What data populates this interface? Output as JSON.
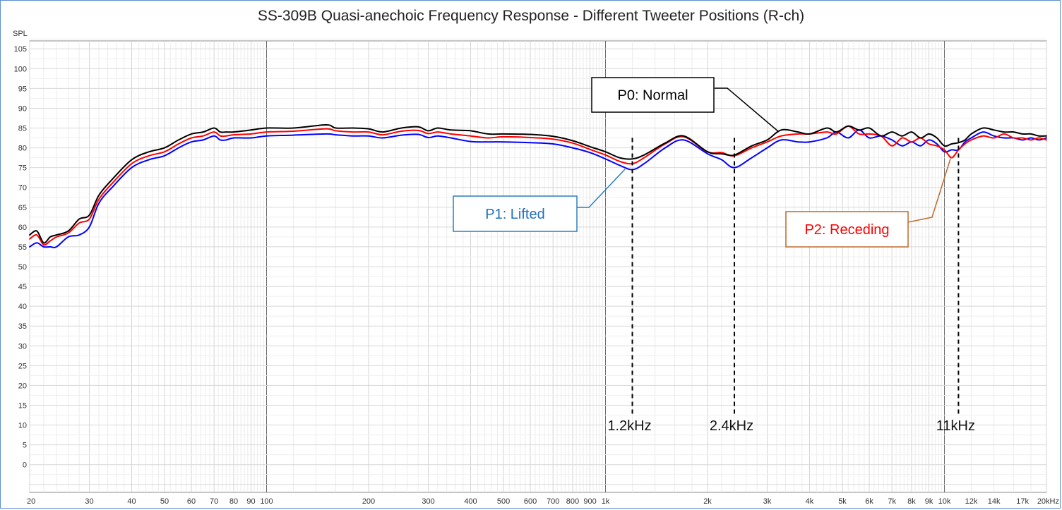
{
  "chart_data": {
    "type": "line",
    "title": "SS-309B Quasi-anechoic Frequency Response - Different Tweeter Positions (R-ch)",
    "ylabel": "SPL",
    "xscale": "log",
    "xlim": [
      20,
      20000
    ],
    "ylim": [
      -7,
      107
    ],
    "grid": true,
    "y_ticks": [
      0,
      5,
      10,
      15,
      20,
      25,
      30,
      35,
      40,
      45,
      50,
      55,
      60,
      65,
      70,
      75,
      80,
      85,
      90,
      95,
      100,
      105
    ],
    "x_ticks": [
      {
        "value": 20,
        "label": "20"
      },
      {
        "value": 30,
        "label": "30"
      },
      {
        "value": 40,
        "label": "40"
      },
      {
        "value": 50,
        "label": "50"
      },
      {
        "value": 60,
        "label": "60"
      },
      {
        "value": 70,
        "label": "70"
      },
      {
        "value": 80,
        "label": "80"
      },
      {
        "value": 90,
        "label": "90"
      },
      {
        "value": 100,
        "label": "100"
      },
      {
        "value": 200,
        "label": "200"
      },
      {
        "value": 300,
        "label": "300"
      },
      {
        "value": 400,
        "label": "400"
      },
      {
        "value": 500,
        "label": "500"
      },
      {
        "value": 600,
        "label": "600"
      },
      {
        "value": 700,
        "label": "700"
      },
      {
        "value": 800,
        "label": "800"
      },
      {
        "value": 900,
        "label": "900"
      },
      {
        "value": 1000,
        "label": "1k"
      },
      {
        "value": 2000,
        "label": "2k"
      },
      {
        "value": 3000,
        "label": "3k"
      },
      {
        "value": 4000,
        "label": "4k"
      },
      {
        "value": 5000,
        "label": "5k"
      },
      {
        "value": 6000,
        "label": "6k"
      },
      {
        "value": 7000,
        "label": "7k"
      },
      {
        "value": 8000,
        "label": "8k"
      },
      {
        "value": 9000,
        "label": "9k"
      },
      {
        "value": 10000,
        "label": "10k"
      },
      {
        "value": 12000,
        "label": "12k",
        "muted": true
      },
      {
        "value": 14000,
        "label": "14k",
        "muted": true
      },
      {
        "value": 17000,
        "label": "17k",
        "muted": true
      },
      {
        "value": 20000,
        "label": "20kHz"
      }
    ],
    "series": [
      {
        "name": "P0: Normal",
        "color": "#000000",
        "x": [
          20,
          21,
          22,
          23,
          24,
          26,
          28,
          30,
          32,
          35,
          40,
          45,
          50,
          55,
          60,
          65,
          70,
          73,
          76,
          80,
          90,
          100,
          120,
          150,
          160,
          180,
          200,
          220,
          250,
          280,
          300,
          320,
          350,
          400,
          450,
          500,
          600,
          700,
          800,
          900,
          1000,
          1100,
          1200,
          1300,
          1500,
          1700,
          2000,
          2200,
          2400,
          2700,
          3000,
          3300,
          3700,
          4000,
          4500,
          4800,
          5200,
          5600,
          6000,
          6500,
          7000,
          7500,
          8000,
          8500,
          9000,
          9500,
          10000,
          10500,
          11000,
          11500,
          12000,
          13000,
          14000,
          15000,
          16000,
          17000,
          18000,
          19000,
          20000
        ],
        "y": [
          58,
          59,
          56,
          57.5,
          58,
          59,
          62,
          63,
          68,
          72,
          77,
          79,
          80,
          82,
          83.5,
          84,
          85,
          84,
          84,
          84,
          84.5,
          85,
          85,
          85.8,
          85,
          85,
          84.8,
          84,
          85,
          85.3,
          84.3,
          85,
          84.5,
          84.3,
          83.5,
          83.5,
          83.4,
          82.9,
          81.8,
          80.3,
          79,
          77.5,
          77.2,
          78.2,
          81.2,
          83,
          79,
          78.5,
          78.2,
          80.5,
          82,
          84.5,
          84,
          83.5,
          85,
          84,
          85.5,
          84.5,
          85,
          83,
          84,
          83,
          84,
          82.5,
          83.5,
          82.5,
          80.5,
          81,
          81.3,
          82,
          83.5,
          85,
          84.5,
          84,
          84,
          83.5,
          83.5,
          83,
          83
        ]
      },
      {
        "name": "P1: Lifted",
        "color": "#0000ff",
        "x": [
          20,
          21,
          22,
          23,
          24,
          26,
          28,
          30,
          32,
          35,
          40,
          45,
          50,
          55,
          60,
          65,
          70,
          73,
          76,
          80,
          90,
          100,
          120,
          150,
          160,
          180,
          200,
          220,
          250,
          280,
          300,
          320,
          350,
          400,
          450,
          500,
          600,
          700,
          800,
          900,
          1000,
          1100,
          1200,
          1300,
          1500,
          1700,
          2000,
          2200,
          2400,
          2700,
          3000,
          3300,
          3700,
          4000,
          4500,
          4800,
          5200,
          5600,
          6000,
          6500,
          7000,
          7500,
          8000,
          8500,
          9000,
          9500,
          10000,
          10500,
          11000,
          11500,
          12000,
          13000,
          14000,
          15000,
          16000,
          17000,
          18000,
          19000,
          20000
        ],
        "y": [
          55,
          56,
          55,
          55,
          55,
          57.5,
          58,
          60,
          66,
          70,
          75,
          77,
          78,
          80,
          81.5,
          82,
          83,
          82,
          82,
          82.5,
          82.5,
          83,
          83.2,
          83.5,
          83.3,
          83,
          83,
          82.5,
          83.2,
          83.4,
          82.6,
          83,
          82.5,
          81.6,
          81.5,
          81.5,
          81.3,
          81,
          80,
          78.8,
          77.2,
          75.6,
          74.5,
          76,
          80,
          82,
          78.5,
          77,
          75,
          77.5,
          80,
          82,
          81.5,
          81.5,
          82.5,
          84,
          82.5,
          84.5,
          82.5,
          83,
          82,
          80.5,
          81.5,
          80.5,
          82,
          81,
          79,
          79.5,
          79.5,
          81.5,
          82.5,
          84,
          83,
          82.5,
          82.5,
          82,
          82.5,
          82,
          82.5
        ]
      },
      {
        "name": "P2: Receding",
        "color": "#ff0000",
        "x": [
          20,
          21,
          22,
          23,
          24,
          26,
          28,
          30,
          32,
          35,
          40,
          45,
          50,
          55,
          60,
          65,
          70,
          73,
          76,
          80,
          90,
          100,
          120,
          150,
          160,
          180,
          200,
          220,
          250,
          280,
          300,
          320,
          350,
          400,
          450,
          500,
          600,
          700,
          800,
          900,
          1000,
          1100,
          1200,
          1300,
          1500,
          1700,
          2000,
          2200,
          2400,
          2700,
          3000,
          3300,
          3700,
          4000,
          4500,
          4800,
          5200,
          5600,
          6000,
          6500,
          7000,
          7500,
          8000,
          8500,
          9000,
          9500,
          10000,
          10500,
          11000,
          11500,
          12000,
          13000,
          14000,
          15000,
          16000,
          17000,
          18000,
          19000,
          20000
        ],
        "y": [
          57,
          58,
          55.5,
          56.5,
          57.5,
          58.5,
          61,
          62,
          67,
          71,
          76,
          78,
          79,
          81,
          82.5,
          83,
          84,
          83,
          83,
          83.3,
          83.5,
          84,
          84.2,
          84.8,
          84.3,
          84,
          84,
          83.3,
          84.2,
          84.4,
          83.6,
          84,
          83.5,
          83,
          82.5,
          82.8,
          82.6,
          82.2,
          81.2,
          79.6,
          78.2,
          76.6,
          76,
          77.5,
          81,
          82.8,
          79,
          78.8,
          78,
          80,
          81.5,
          83,
          83.5,
          83.5,
          84,
          83.5,
          85.5,
          83.5,
          83.5,
          83,
          80.5,
          82.5,
          81.5,
          82.5,
          81,
          80.5,
          79.5,
          77.5,
          79.5,
          81,
          82,
          83,
          82.5,
          83.5,
          82.5,
          82.5,
          82,
          82.5,
          82
        ]
      }
    ],
    "annotations": [
      {
        "text": "P0: Normal",
        "color": "#000000"
      },
      {
        "text": "P1: Lifted",
        "color": "#1f6fbf"
      },
      {
        "text": "P2: Receding",
        "color": "#ff0000"
      }
    ],
    "markers": [
      {
        "x": 1200,
        "label": "1.2kHz"
      },
      {
        "x": 2400,
        "label": "2.4kHz"
      },
      {
        "x": 11000,
        "label": "11kHz"
      }
    ]
  }
}
